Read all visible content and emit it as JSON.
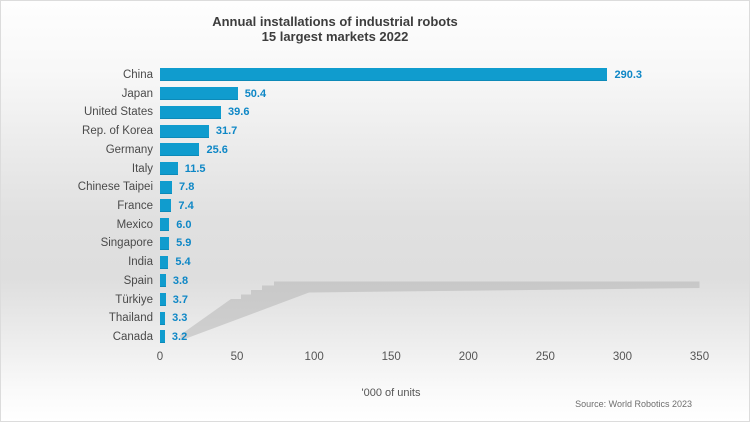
{
  "chart_data": {
    "type": "bar",
    "orientation": "horizontal",
    "title": "Annual installations of industrial robots",
    "subtitle": "15 largest markets 2022",
    "categories": [
      "China",
      "Japan",
      "United States",
      "Rep. of Korea",
      "Germany",
      "Italy",
      "Chinese Taipei",
      "France",
      "Mexico",
      "Singapore",
      "India",
      "Spain",
      "Türkiye",
      "Thailand",
      "Canada"
    ],
    "values": [
      290.3,
      50.4,
      39.6,
      31.7,
      25.6,
      11.5,
      7.8,
      7.4,
      6.0,
      5.9,
      5.4,
      3.8,
      3.7,
      3.3,
      3.2
    ],
    "value_labels": [
      "290.3",
      "50.4",
      "39.6",
      "31.7",
      "25.6",
      "11.5",
      "7.8",
      "7.4",
      "6.0",
      "5.9",
      "5.4",
      "3.8",
      "3.7",
      "3.3",
      "3.2"
    ],
    "x_ticks": [
      0,
      50,
      100,
      150,
      200,
      250,
      300,
      350
    ],
    "xlim": [
      0,
      350
    ],
    "xlabel": "'000 of units",
    "source": "Source: World Robotics 2023",
    "grid": false,
    "legend": "none",
    "bar_color": "#109CCE",
    "value_label_color": "#0e87c6"
  }
}
